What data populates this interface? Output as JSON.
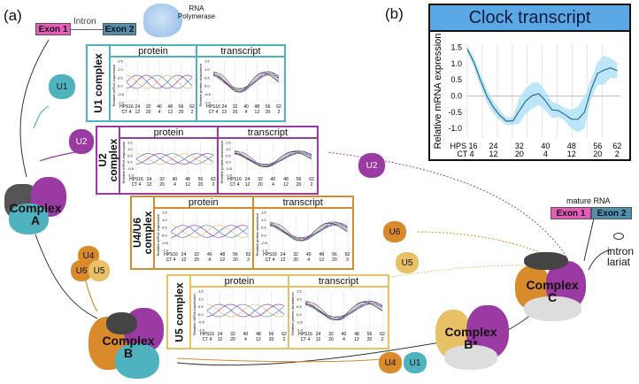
{
  "panel_a_label": "(a)",
  "panel_b_label": "(b)",
  "gene": {
    "exon1": "Exon 1",
    "intron": "Intron",
    "exon2": "Exon 2",
    "polymerase": "RNA Polymerase"
  },
  "mature": {
    "title": "mature RNA",
    "exon1": "Exon 1",
    "exon2": "Exon 2"
  },
  "lariat": "intron lariat",
  "colors": {
    "exon1": "#e85bbd",
    "exon2": "#4f8fb0",
    "u1": "#4fb3bf",
    "u2": "#9b3aa3",
    "u4u6": "#d98a2b",
    "u5": "#e8c065",
    "clock": "#5aa9e6"
  },
  "mini": {
    "protein": "protein",
    "transcript": "transcript",
    "ylabel_protein": "Relative mRNA expression",
    "ylabel_transcript": "Relative protein abundance",
    "yticks": [
      "1.5",
      "1.0",
      "0.5",
      "0.0",
      "-0.5",
      "-1.0"
    ],
    "hps": [
      "HPS16",
      "24",
      "32",
      "40",
      "48",
      "56",
      "62"
    ],
    "ct": [
      "CT 4",
      "12",
      "20",
      "4",
      "12",
      "20",
      "2"
    ]
  },
  "complexes": [
    {
      "name": "U1 complex"
    },
    {
      "name": "U2 complex"
    },
    {
      "name": "U4/U6 complex"
    },
    {
      "name": "U5 complex"
    }
  ],
  "snrnps": {
    "u1": "U1",
    "u2": "U2",
    "u4": "U4",
    "u5": "U5",
    "u6": "U6"
  },
  "spliceosome": {
    "a": "Complex A",
    "b": "Complex B",
    "bstar": "Complex B*",
    "c": "Complex C"
  },
  "chart_data": {
    "type": "line",
    "title": "Clock transcript",
    "ylabel": "Relative mRNA expression",
    "x_label_rows": [
      "HPS",
      "CT"
    ],
    "x_ticks": [
      16,
      24,
      32,
      40,
      48,
      56,
      62
    ],
    "x_tick_labels_hps": [
      "HPS 16",
      "24",
      "32",
      "40",
      "48",
      "56",
      "62"
    ],
    "x_tick_labels_ct": [
      "CT 4",
      "12",
      "20",
      "4",
      "12",
      "20",
      "2"
    ],
    "y_ticks": [
      "1.5",
      "1.0",
      "0.5",
      "0.0",
      "-0.5",
      "-1.0"
    ],
    "ylim": [
      -1.3,
      1.6
    ],
    "xlim": [
      16,
      63
    ],
    "x": [
      16,
      18,
      20,
      22,
      24,
      26,
      28,
      30,
      32,
      34,
      36,
      38,
      40,
      42,
      44,
      46,
      48,
      50,
      52,
      54,
      56,
      58,
      60,
      62
    ],
    "y": [
      1.45,
      1.05,
      0.5,
      0.0,
      -0.35,
      -0.6,
      -0.78,
      -0.77,
      -0.45,
      -0.15,
      0.02,
      0.07,
      -0.15,
      -0.43,
      -0.45,
      -0.58,
      -0.72,
      -0.72,
      -0.5,
      0.2,
      0.7,
      0.8,
      0.87,
      0.78
    ],
    "band_half_width": [
      0.1,
      0.15,
      0.2,
      0.2,
      0.2,
      0.15,
      0.12,
      0.12,
      0.4,
      0.4,
      0.4,
      0.35,
      0.3,
      0.25,
      0.2,
      0.2,
      0.3,
      0.4,
      0.5,
      0.3,
      0.35,
      0.45,
      0.3,
      0.25
    ]
  }
}
